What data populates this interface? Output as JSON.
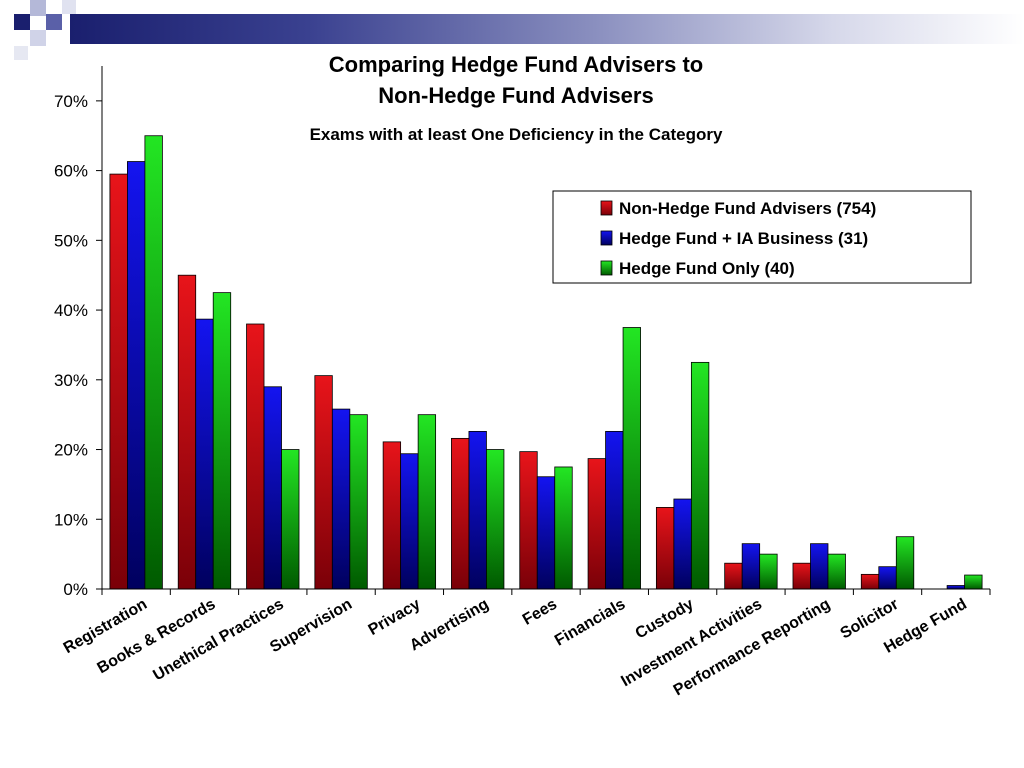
{
  "slide": {
    "accent_colors": [
      "#1a1f6e",
      "#5a60a8",
      "#b4b8d8"
    ]
  },
  "chart_data": {
    "type": "bar",
    "title": "Comparing Hedge Fund Advisers to",
    "title_line2": "Non-Hedge Fund Advisers",
    "subtitle": "Exams with at least One Deficiency in the Category",
    "xlabel": "",
    "ylabel": "",
    "ylim": [
      0,
      0.75
    ],
    "yticks": [
      0,
      0.1,
      0.2,
      0.3,
      0.4,
      0.5,
      0.6,
      0.7
    ],
    "ytick_labels": [
      "0%",
      "10%",
      "20%",
      "30%",
      "40%",
      "50%",
      "60%",
      "70%"
    ],
    "grid": false,
    "legend_position": "top-right",
    "categories": [
      "Registration",
      "Books & Records",
      "Unethical Practices",
      "Supervision",
      "Privacy",
      "Advertising",
      "Fees",
      "Financials",
      "Custody",
      "Investment Activities",
      "Performance Reporting",
      "Solicitor",
      "Hedge Fund"
    ],
    "series": [
      {
        "name": "Non-Hedge Fund Advisers (754)",
        "color": "#e8141a",
        "color_dark": "#7a0008",
        "values": [
          0.595,
          0.45,
          0.38,
          0.306,
          0.211,
          0.216,
          0.197,
          0.187,
          0.117,
          0.037,
          0.037,
          0.021,
          0.0
        ]
      },
      {
        "name": "Hedge Fund + IA Business (31)",
        "color": "#1414f0",
        "color_dark": "#00005e",
        "values": [
          0.613,
          0.387,
          0.29,
          0.258,
          0.194,
          0.226,
          0.161,
          0.226,
          0.129,
          0.065,
          0.065,
          0.032,
          0.005
        ]
      },
      {
        "name": "Hedge Fund Only (40)",
        "color": "#23e623",
        "color_dark": "#005a00",
        "values": [
          0.65,
          0.425,
          0.2,
          0.25,
          0.25,
          0.2,
          0.175,
          0.375,
          0.325,
          0.05,
          0.05,
          0.075,
          0.02
        ]
      }
    ]
  }
}
